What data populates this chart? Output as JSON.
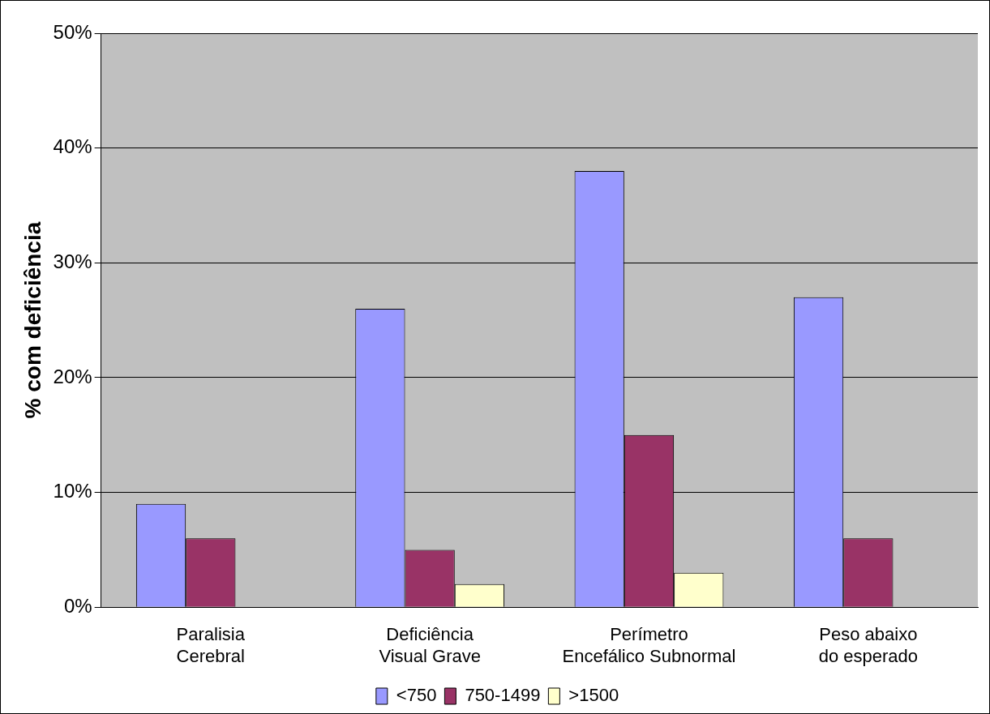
{
  "chart_data": {
    "type": "bar",
    "ylabel": "% com deficiência",
    "categories": [
      "Paralisia Cerebral",
      "Deficiência Visual Grave",
      "Perímetro Encefálico Subnormal",
      "Peso abaixo do esperado"
    ],
    "series": [
      {
        "name": "<750",
        "color": "#9999ff",
        "values": [
          9,
          26,
          38,
          27
        ]
      },
      {
        "name": "750-1499",
        "color": "#993366",
        "values": [
          6,
          5,
          15,
          6
        ]
      },
      {
        "name": ">1500",
        "color": "#ffffcc",
        "values": [
          null,
          2,
          3,
          null
        ]
      }
    ],
    "ylim": [
      0,
      50
    ],
    "yticks": [
      {
        "value": 0,
        "label": "0%"
      },
      {
        "value": 10,
        "label": "10%"
      },
      {
        "value": 20,
        "label": "20%"
      },
      {
        "value": 30,
        "label": "30%"
      },
      {
        "value": 40,
        "label": "40%"
      },
      {
        "value": 50,
        "label": "50%"
      }
    ],
    "grid": "y",
    "legend": "bottom"
  }
}
